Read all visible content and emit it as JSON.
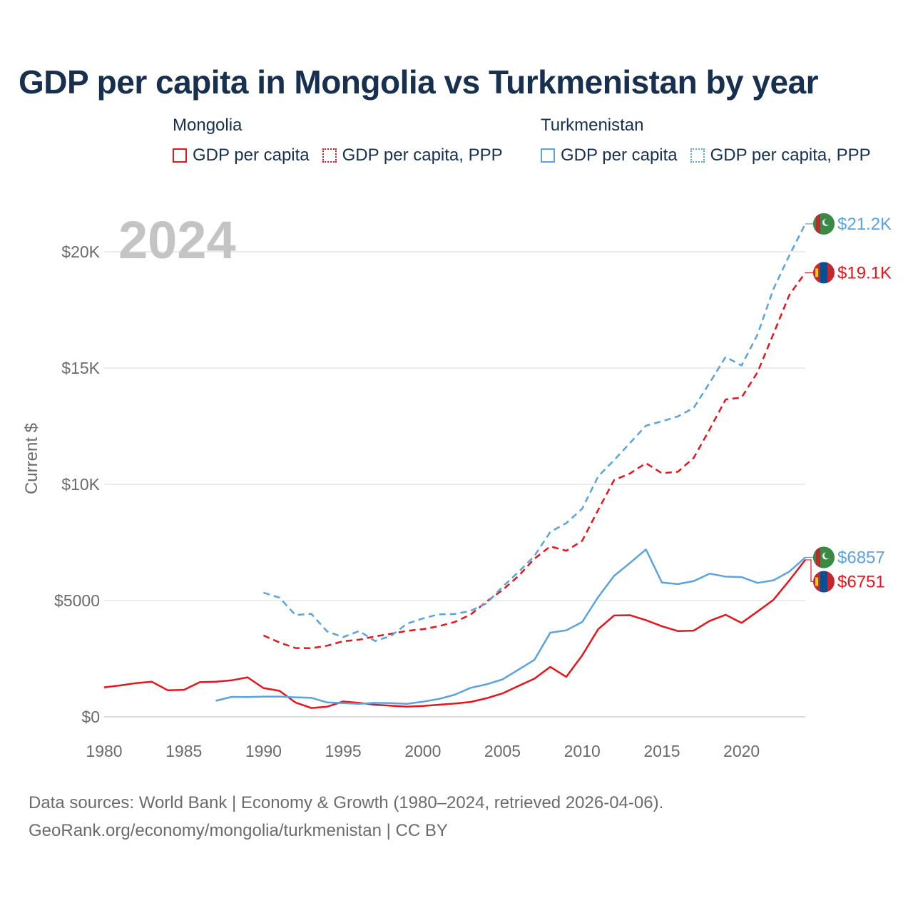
{
  "title": "GDP per capita in Mongolia vs Turkmenistan by year",
  "legend": [
    {
      "country": "Mongolia",
      "items": [
        {
          "label": "GDP per capita",
          "style": "solid",
          "color": "#e8141b"
        },
        {
          "label": "GDP per capita, PPP",
          "style": "dotted",
          "color": "#e8141b"
        }
      ]
    },
    {
      "country": "Turkmenistan",
      "items": [
        {
          "label": "GDP per capita",
          "style": "solid",
          "color": "#5ba3e0"
        },
        {
          "label": "GDP per capita, PPP",
          "style": "dotted",
          "color": "#5ba3e0"
        }
      ]
    }
  ],
  "year_watermark": "2024",
  "footer": {
    "line1": "Data sources: World Bank | Economy & Growth (1980–2024, retrieved 2026-04-06).",
    "line2": "GeoRank.org/economy/mongolia/turkmenistan | CC BY"
  },
  "chart_data": {
    "type": "line",
    "ylabel": "Current $",
    "xlim": [
      1980,
      2024
    ],
    "ylim": [
      0,
      20000
    ],
    "x_ticks": [
      1980,
      1985,
      1990,
      1995,
      2000,
      2005,
      2010,
      2015,
      2020
    ],
    "y_ticks": [
      0,
      5000,
      10000,
      15000,
      20000
    ],
    "y_tick_labels": [
      "$0",
      "$5000",
      "$10K",
      "$15K",
      "$20K"
    ],
    "grid": true,
    "series": [
      {
        "name": "Mongolia GDP per capita",
        "color": "#e8141b",
        "dash": "solid",
        "end_label": "$6751",
        "flag": "mongolia",
        "x": [
          1980,
          1981,
          1982,
          1983,
          1984,
          1985,
          1986,
          1987,
          1988,
          1989,
          1990,
          1991,
          1992,
          1993,
          1994,
          1995,
          1996,
          1997,
          1998,
          1999,
          2000,
          2001,
          2002,
          2003,
          2004,
          2005,
          2006,
          2007,
          2008,
          2009,
          2010,
          2011,
          2012,
          2013,
          2014,
          2015,
          2016,
          2017,
          2018,
          2019,
          2020,
          2021,
          2022,
          2023,
          2024
        ],
        "values": [
          1270,
          1350,
          1450,
          1510,
          1140,
          1160,
          1490,
          1510,
          1570,
          1700,
          1240,
          1120,
          620,
          380,
          440,
          660,
          600,
          520,
          480,
          440,
          470,
          520,
          570,
          640,
          800,
          1010,
          1330,
          1640,
          2150,
          1720,
          2640,
          3770,
          4360,
          4370,
          4160,
          3900,
          3690,
          3710,
          4130,
          4390,
          4040,
          4530,
          5030,
          5870,
          6751
        ]
      },
      {
        "name": "Mongolia GDP per capita, PPP",
        "color": "#e8141b",
        "dash": "dashed",
        "end_label": "$19.1K",
        "flag": "mongolia",
        "x": [
          1990,
          1991,
          1992,
          1993,
          1994,
          1995,
          1996,
          1997,
          1998,
          1999,
          2000,
          2001,
          2002,
          2003,
          2004,
          2005,
          2006,
          2007,
          2008,
          2009,
          2010,
          2011,
          2012,
          2013,
          2014,
          2015,
          2016,
          2017,
          2018,
          2019,
          2020,
          2021,
          2022,
          2023,
          2024
        ],
        "values": [
          3500,
          3200,
          2960,
          2950,
          3060,
          3250,
          3320,
          3460,
          3570,
          3700,
          3770,
          3900,
          4080,
          4400,
          4960,
          5450,
          6060,
          6800,
          7330,
          7140,
          7570,
          8900,
          10180,
          10470,
          10910,
          10480,
          10540,
          11140,
          12370,
          13650,
          13730,
          14820,
          16470,
          18150,
          19100
        ]
      },
      {
        "name": "Turkmenistan GDP per capita",
        "color": "#5ba3e0",
        "dash": "solid",
        "end_label": "$6857",
        "flag": "turkmenistan",
        "x": [
          1987,
          1988,
          1989,
          1990,
          1991,
          1992,
          1993,
          1994,
          1995,
          1996,
          1997,
          1998,
          1999,
          2000,
          2001,
          2002,
          2003,
          2004,
          2005,
          2006,
          2007,
          2008,
          2009,
          2010,
          2011,
          2012,
          2013,
          2014,
          2015,
          2016,
          2017,
          2018,
          2019,
          2020,
          2021,
          2022,
          2023,
          2024
        ],
        "values": [
          690,
          860,
          850,
          870,
          870,
          840,
          820,
          620,
          590,
          560,
          600,
          590,
          560,
          650,
          770,
          950,
          1250,
          1400,
          1610,
          2030,
          2450,
          3620,
          3720,
          4080,
          5150,
          6060,
          6620,
          7200,
          5780,
          5710,
          5840,
          6160,
          6030,
          6010,
          5760,
          5870,
          6250,
          6857
        ]
      },
      {
        "name": "Turkmenistan GDP per capita, PPP",
        "color": "#5ba3e0",
        "dash": "dashed",
        "end_label": "$21.2K",
        "flag": "turkmenistan",
        "x": [
          1990,
          1991,
          1992,
          1993,
          1994,
          1995,
          1996,
          1997,
          1998,
          1999,
          2000,
          2001,
          2002,
          2003,
          2004,
          2005,
          2006,
          2007,
          2008,
          2009,
          2010,
          2011,
          2012,
          2013,
          2014,
          2015,
          2016,
          2017,
          2018,
          2019,
          2020,
          2021,
          2022,
          2023,
          2024
        ],
        "values": [
          5340,
          5130,
          4380,
          4430,
          3670,
          3430,
          3690,
          3260,
          3480,
          4010,
          4230,
          4410,
          4420,
          4560,
          4880,
          5590,
          6230,
          6920,
          7950,
          8330,
          8950,
          10340,
          11040,
          11780,
          12520,
          12710,
          12920,
          13290,
          14370,
          15480,
          15110,
          16440,
          18400,
          19850,
          21200
        ]
      }
    ]
  }
}
